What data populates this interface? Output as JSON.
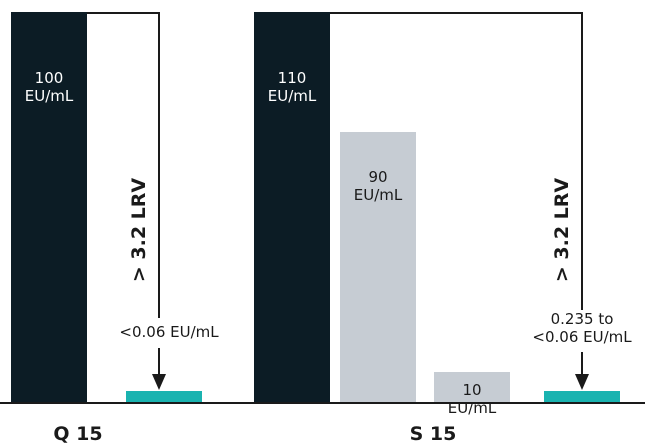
{
  "chart_data": {
    "type": "bar",
    "unit": "EU/mL",
    "colors": {
      "dark": "#0c1c25",
      "gray": "#c6ccd3",
      "teal": "#1ab3b0",
      "line": "#1a1a1a",
      "text": "#1a1a1a",
      "light_text": "#ffffff"
    },
    "groups": [
      {
        "label": "Q 15",
        "bars": [
          {
            "value": 100,
            "label": [
              "100",
              "EU/mL"
            ],
            "color": "dark",
            "label_color": "light_text"
          },
          {
            "value": 0.06,
            "label": [
              "<0.06 EU/mL"
            ],
            "color": "teal",
            "label_color": "text"
          }
        ],
        "reduction_label": "> 3.2 LRV"
      },
      {
        "label": "S 15",
        "bars": [
          {
            "value": 110,
            "label": [
              "110",
              "EU/mL"
            ],
            "color": "dark",
            "label_color": "light_text"
          },
          {
            "value": 90,
            "label": [
              "90",
              "EU/mL"
            ],
            "color": "gray",
            "label_color": "text"
          },
          {
            "value": 10,
            "label": [
              "10",
              "EU/mL"
            ],
            "color": "gray",
            "label_color": "text"
          },
          {
            "value": 0.235,
            "label": [
              "0.235 to",
              "<0.06 EU/mL"
            ],
            "color": "teal",
            "label_color": "text"
          }
        ],
        "reduction_label": "> 3.2 LRV"
      }
    ]
  }
}
